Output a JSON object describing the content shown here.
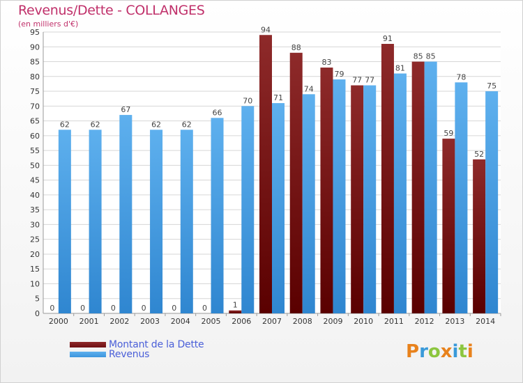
{
  "chart_data": {
    "type": "bar",
    "title": "Revenus/Dette - COLLANGES",
    "subtitle": "(en milliers d'€)",
    "categories": [
      "2000",
      "2001",
      "2002",
      "2003",
      "2004",
      "2005",
      "2006",
      "2007",
      "2008",
      "2009",
      "2010",
      "2011",
      "2012",
      "2013",
      "2014"
    ],
    "series": [
      {
        "name": "Montant de la Dette",
        "color": "#6e0f12",
        "values": [
          0,
          0,
          0,
          0,
          0,
          0,
          1,
          94,
          88,
          83,
          77,
          91,
          85,
          59,
          52
        ]
      },
      {
        "name": "Revenus",
        "color": "#3d95dd",
        "values": [
          62,
          62,
          67,
          62,
          62,
          66,
          70,
          71,
          74,
          79,
          77,
          81,
          85,
          78,
          75
        ]
      }
    ],
    "yticks": [
      0,
      5,
      10,
      15,
      20,
      25,
      30,
      35,
      40,
      45,
      50,
      55,
      60,
      65,
      70,
      75,
      80,
      85,
      90,
      95
    ],
    "ylim": [
      0,
      95
    ],
    "grid": true,
    "legend_position": "bottom-left"
  },
  "logo": {
    "letters": [
      "P",
      "r",
      "o",
      "x",
      "i",
      "t",
      "i"
    ],
    "colors": [
      "#e8821c",
      "#3a9ad9",
      "#8cc63f",
      "#e8821c",
      "#3a9ad9",
      "#8cc63f",
      "#e8821c"
    ]
  }
}
